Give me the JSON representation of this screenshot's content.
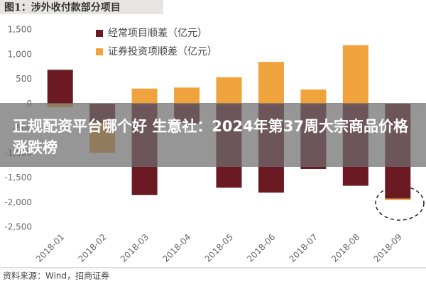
{
  "chart_data": {
    "type": "bar",
    "stacked": true,
    "title": "图1：涉外收付款部分项目",
    "source": "资料来源：Wind，招商证券",
    "categories": [
      "2018-01",
      "2018-02",
      "2018-03",
      "2018-04",
      "2018-05",
      "2018-06",
      "2018-07",
      "2018-08",
      "2018-09"
    ],
    "series": [
      {
        "name": "经常项目顺差（亿元）",
        "color": "#6b1a24",
        "values": [
          690,
          -380,
          -1850,
          -400,
          -1700,
          -1800,
          -1320,
          -1660,
          -1920
        ]
      },
      {
        "name": "证券投资项顺差（亿元）",
        "color": "#f0a23c",
        "values": [
          -70,
          -610,
          310,
          330,
          540,
          850,
          290,
          1190,
          -30
        ]
      }
    ],
    "ylim": [
      -2500,
      1500
    ],
    "yticks": [
      {
        "value": 1500,
        "label": "1,500"
      },
      {
        "value": 1000,
        "label": "1,000"
      },
      500,
      0,
      -500,
      {
        "value": -1000,
        "label": "-1,000"
      },
      {
        "value": -1500,
        "label": "-1,500"
      },
      {
        "value": -2000,
        "label": "-2,000"
      },
      {
        "value": -2500,
        "label": "-2,500"
      }
    ],
    "grid": false,
    "legend": "top"
  },
  "overlay": {
    "text": "正规配资平台哪个好 生意社：2024年第37周大宗商品价格涨跌榜"
  }
}
